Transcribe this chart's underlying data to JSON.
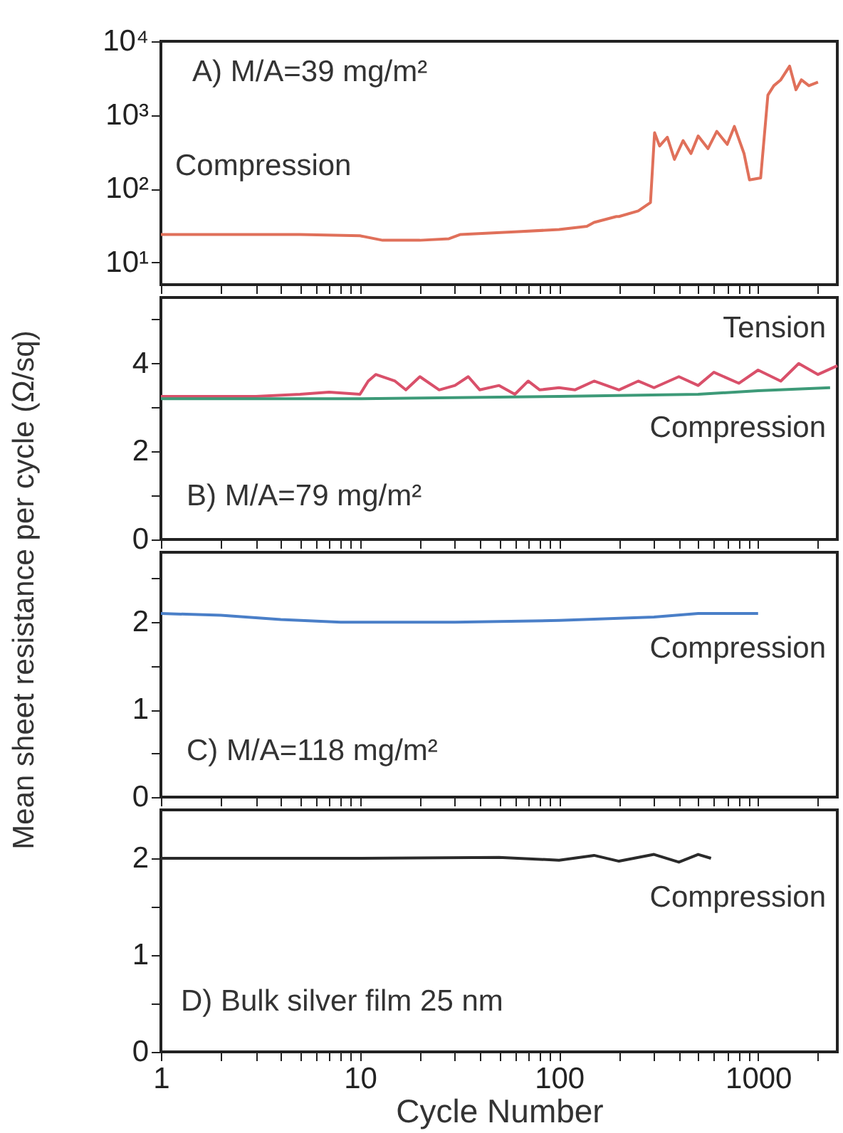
{
  "chart_data": [
    {
      "type": "line",
      "annotations": [
        "A) M/A=39 mg/m²"
      ],
      "xlim": [
        1,
        2500
      ],
      "ylim": [
        5,
        10000
      ],
      "log": "xy",
      "tick_labels": "y",
      "xticks": [
        1,
        {
          "value": 2,
          "label": null
        },
        {
          "value": 3,
          "label": null
        },
        {
          "value": 4,
          "label": null
        },
        {
          "value": 5,
          "label": null
        },
        {
          "value": 6,
          "label": null
        },
        {
          "value": 7,
          "label": null
        },
        {
          "value": 8,
          "label": null
        },
        {
          "value": 9,
          "label": null
        },
        10,
        {
          "value": 20,
          "label": null
        },
        {
          "value": 30,
          "label": null
        },
        {
          "value": 40,
          "label": null
        },
        {
          "value": 50,
          "label": null
        },
        {
          "value": 60,
          "label": null
        },
        {
          "value": 70,
          "label": null
        },
        {
          "value": 80,
          "label": null
        },
        {
          "value": 90,
          "label": null
        },
        100,
        {
          "value": 200,
          "label": null
        },
        {
          "value": 300,
          "label": null
        },
        {
          "value": 400,
          "label": null
        },
        {
          "value": 500,
          "label": null
        },
        {
          "value": 600,
          "label": null
        },
        {
          "value": 700,
          "label": null
        },
        {
          "value": 800,
          "label": null
        },
        {
          "value": 900,
          "label": null
        },
        1000,
        {
          "value": 2000,
          "label": null
        }
      ],
      "yticks": [
        {
          "value": 10,
          "label": "10¹"
        },
        {
          "value": 100,
          "label": "10²"
        },
        {
          "value": 1000,
          "label": "10³"
        },
        {
          "value": 10000,
          "label": "10⁴"
        }
      ],
      "series": [
        {
          "name": "Compression",
          "color": "#e0705a",
          "x": [
            1,
            2,
            5,
            10,
            13,
            20,
            28,
            32,
            60,
            100,
            138,
            150,
            194,
            200,
            250,
            288,
            302,
            320,
            350,
            380,
            420,
            460,
            500,
            560,
            620,
            700,
            760,
            850,
            905,
            950,
            1030,
            1120,
            1200,
            1300,
            1440,
            1550,
            1650,
            1800,
            2000
          ],
          "values": [
            24,
            24,
            24,
            23,
            20,
            20,
            21,
            24,
            26,
            28,
            31,
            35,
            42,
            42,
            50,
            65,
            575,
            380,
            500,
            250,
            450,
            300,
            520,
            350,
            600,
            400,
            700,
            300,
            132,
            135,
            140,
            1860,
            2500,
            3000,
            4600,
            2200,
            3000,
            2500,
            2800
          ]
        }
      ]
    },
    {
      "type": "line",
      "annotations": [
        "B) M/A=79 mg/m²"
      ],
      "xlim": [
        1,
        2500
      ],
      "ylim": [
        0,
        5.5
      ],
      "log": "x",
      "tick_labels": "y",
      "xticks": [
        1,
        {
          "value": 2,
          "label": null
        },
        {
          "value": 3,
          "label": null
        },
        {
          "value": 4,
          "label": null
        },
        {
          "value": 5,
          "label": null
        },
        {
          "value": 6,
          "label": null
        },
        {
          "value": 7,
          "label": null
        },
        {
          "value": 8,
          "label": null
        },
        {
          "value": 9,
          "label": null
        },
        10,
        {
          "value": 20,
          "label": null
        },
        {
          "value": 30,
          "label": null
        },
        {
          "value": 40,
          "label": null
        },
        {
          "value": 50,
          "label": null
        },
        {
          "value": 60,
          "label": null
        },
        {
          "value": 70,
          "label": null
        },
        {
          "value": 80,
          "label": null
        },
        {
          "value": 90,
          "label": null
        },
        100,
        {
          "value": 200,
          "label": null
        },
        {
          "value": 300,
          "label": null
        },
        {
          "value": 400,
          "label": null
        },
        {
          "value": 500,
          "label": null
        },
        {
          "value": 600,
          "label": null
        },
        {
          "value": 700,
          "label": null
        },
        {
          "value": 800,
          "label": null
        },
        {
          "value": 900,
          "label": null
        },
        1000,
        {
          "value": 2000,
          "label": null
        }
      ],
      "yticks": [
        0,
        {
          "value": 1,
          "label": null
        },
        2,
        {
          "value": 3,
          "label": null
        },
        4,
        {
          "value": 5,
          "label": null
        }
      ],
      "series": [
        {
          "name": "Tension",
          "color": "#d9506a",
          "x": [
            1,
            3,
            5,
            7,
            10,
            11,
            12,
            15,
            17,
            20,
            25,
            30,
            35,
            40,
            50,
            60,
            70,
            80,
            100,
            120,
            150,
            200,
            250,
            300,
            400,
            500,
            600,
            800,
            1000,
            1300,
            1600,
            2000,
            2500
          ],
          "values": [
            3.25,
            3.25,
            3.3,
            3.35,
            3.3,
            3.6,
            3.75,
            3.6,
            3.4,
            3.7,
            3.4,
            3.5,
            3.7,
            3.4,
            3.5,
            3.3,
            3.6,
            3.4,
            3.45,
            3.4,
            3.6,
            3.4,
            3.6,
            3.45,
            3.7,
            3.5,
            3.8,
            3.55,
            3.85,
            3.6,
            4.0,
            3.75,
            3.95
          ]
        },
        {
          "name": "Compression",
          "color": "#3d9a78",
          "x": [
            1,
            10,
            100,
            500,
            1000,
            2300
          ],
          "values": [
            3.2,
            3.2,
            3.25,
            3.3,
            3.38,
            3.45
          ]
        }
      ]
    },
    {
      "type": "line",
      "annotations": [
        "C) M/A=118 mg/m²"
      ],
      "ylabel": "Mean sheet resistance per cycle (Ω/sq)",
      "xlim": [
        1,
        2500
      ],
      "ylim": [
        0,
        2.8
      ],
      "log": "x",
      "tick_labels": "y",
      "xticks": [
        1,
        {
          "value": 2,
          "label": null
        },
        {
          "value": 3,
          "label": null
        },
        {
          "value": 4,
          "label": null
        },
        {
          "value": 5,
          "label": null
        },
        {
          "value": 6,
          "label": null
        },
        {
          "value": 7,
          "label": null
        },
        {
          "value": 8,
          "label": null
        },
        {
          "value": 9,
          "label": null
        },
        10,
        {
          "value": 20,
          "label": null
        },
        {
          "value": 30,
          "label": null
        },
        {
          "value": 40,
          "label": null
        },
        {
          "value": 50,
          "label": null
        },
        {
          "value": 60,
          "label": null
        },
        {
          "value": 70,
          "label": null
        },
        {
          "value": 80,
          "label": null
        },
        {
          "value": 90,
          "label": null
        },
        100,
        {
          "value": 200,
          "label": null
        },
        {
          "value": 300,
          "label": null
        },
        {
          "value": 400,
          "label": null
        },
        {
          "value": 500,
          "label": null
        },
        {
          "value": 600,
          "label": null
        },
        {
          "value": 700,
          "label": null
        },
        {
          "value": 800,
          "label": null
        },
        {
          "value": 900,
          "label": null
        },
        1000,
        {
          "value": 2000,
          "label": null
        }
      ],
      "yticks": [
        0,
        {
          "value": 0.5,
          "label": null
        },
        1,
        {
          "value": 1.5,
          "label": null
        },
        2,
        {
          "value": 2.5,
          "label": null
        }
      ],
      "series": [
        {
          "name": "Compression",
          "color": "#4a7fc8",
          "x": [
            1,
            2,
            4,
            8,
            30,
            100,
            300,
            500,
            1000
          ],
          "values": [
            2.1,
            2.08,
            2.03,
            2.0,
            2.0,
            2.02,
            2.06,
            2.1,
            2.1
          ]
        }
      ]
    },
    {
      "type": "line",
      "annotations": [
        "D) Bulk silver film 25 nm"
      ],
      "xlabel": "Cycle Number",
      "xlim": [
        1,
        2500
      ],
      "ylim": [
        0,
        2.5
      ],
      "log": "x",
      "xticks": [
        1,
        {
          "value": 2,
          "label": null
        },
        {
          "value": 3,
          "label": null
        },
        {
          "value": 4,
          "label": null
        },
        {
          "value": 5,
          "label": null
        },
        {
          "value": 6,
          "label": null
        },
        {
          "value": 7,
          "label": null
        },
        {
          "value": 8,
          "label": null
        },
        {
          "value": 9,
          "label": null
        },
        10,
        {
          "value": 20,
          "label": null
        },
        {
          "value": 30,
          "label": null
        },
        {
          "value": 40,
          "label": null
        },
        {
          "value": 50,
          "label": null
        },
        {
          "value": 60,
          "label": null
        },
        {
          "value": 70,
          "label": null
        },
        {
          "value": 80,
          "label": null
        },
        {
          "value": 90,
          "label": null
        },
        100,
        {
          "value": 200,
          "label": null
        },
        {
          "value": 300,
          "label": null
        },
        {
          "value": 400,
          "label": null
        },
        {
          "value": 500,
          "label": null
        },
        {
          "value": 600,
          "label": null
        },
        {
          "value": 700,
          "label": null
        },
        {
          "value": 800,
          "label": null
        },
        {
          "value": 900,
          "label": null
        },
        1000,
        {
          "value": 2000,
          "label": null
        }
      ],
      "yticks": [
        0,
        {
          "value": 0.5,
          "label": null
        },
        1,
        {
          "value": 1.5,
          "label": null
        },
        2
      ],
      "series": [
        {
          "name": "Compression",
          "color": "#2a2a2a",
          "x": [
            1,
            10,
            50,
            100,
            150,
            200,
            300,
            400,
            500,
            580
          ],
          "values": [
            2.0,
            2.0,
            2.01,
            1.98,
            2.03,
            1.97,
            2.04,
            1.96,
            2.04,
            2.0
          ]
        }
      ]
    }
  ]
}
